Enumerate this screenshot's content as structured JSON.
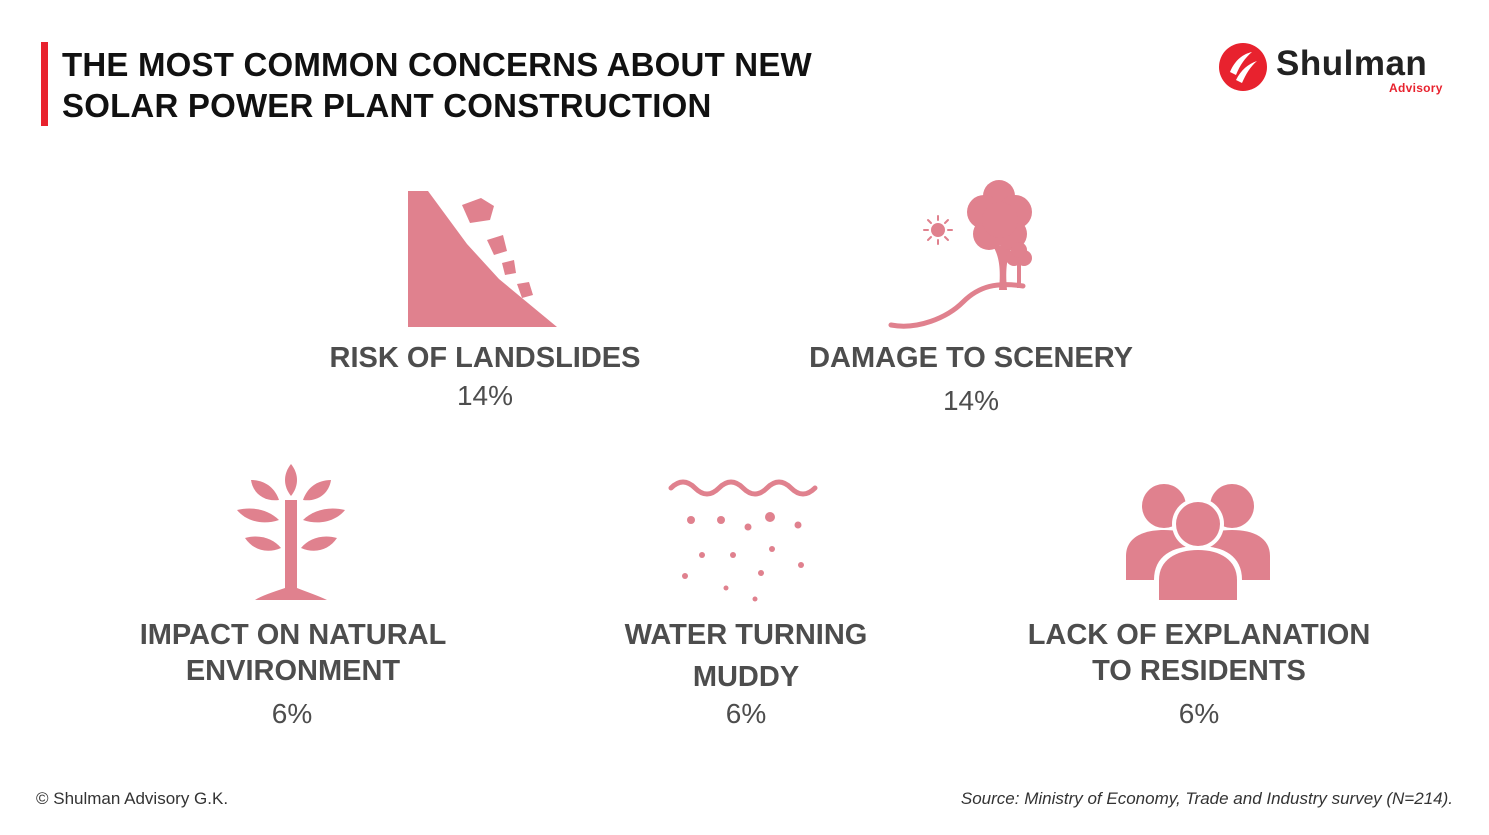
{
  "header": {
    "title_line1": "THE MOST COMMON CONCERNS ABOUT NEW",
    "title_line2": "SOLAR POWER PLANT CONSTRUCTION"
  },
  "logo": {
    "name": "Shulman",
    "sub": "Advisory",
    "icon": "shulman-logo-icon"
  },
  "concerns": [
    {
      "label_line1": "RISK OF LANDSLIDES",
      "label_line2": "",
      "percent": "14%",
      "icon": "landslide-icon"
    },
    {
      "label_line1": "DAMAGE TO SCENERY",
      "label_line2": "",
      "percent": "14%",
      "icon": "scenery-tree-icon"
    },
    {
      "label_line1": "IMPACT ON NATURAL",
      "label_line2": "ENVIRONMENT",
      "percent": "6%",
      "icon": "tree-icon"
    },
    {
      "label_line1": "WATER TURNING",
      "label_line2": "MUDDY",
      "percent": "6%",
      "icon": "muddy-water-icon"
    },
    {
      "label_line1": "LACK OF EXPLANATION",
      "label_line2": "TO RESIDENTS",
      "percent": "6%",
      "icon": "residents-group-icon"
    }
  ],
  "footer": {
    "copyright": "© Shulman Advisory G.K.",
    "source": "Source: Ministry of Economy, Trade and Industry survey (N=214)."
  },
  "colors": {
    "accent": "#e8222e",
    "icon": "#e0818e",
    "text": "#4d4d4d"
  }
}
